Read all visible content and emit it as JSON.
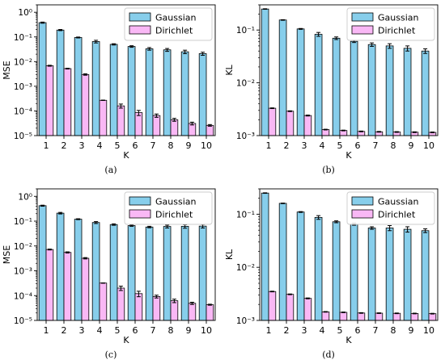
{
  "chart_data": [
    {
      "type": "bar",
      "panel": "(a)",
      "categories": [
        "1",
        "2",
        "3",
        "4",
        "5",
        "6",
        "7",
        "8",
        "9",
        "10"
      ],
      "xlabel": "K",
      "ylabel": "MSE",
      "yscale": "log",
      "ylim": [
        1e-05,
        2
      ],
      "ytick_labels": [
        "10⁻⁵",
        "10⁻⁴",
        "10⁻³",
        "10⁻²",
        "10⁻¹",
        "10⁰"
      ],
      "legend": "top-right",
      "series": [
        {
          "name": "Gaussian",
          "color": "#87ceeb",
          "values": [
            0.38,
            0.19,
            0.095,
            0.065,
            0.05,
            0.041,
            0.033,
            0.03,
            0.025,
            0.021
          ],
          "errors": [
            0.02,
            0.01,
            0.004,
            0.008,
            0.003,
            0.003,
            0.004,
            0.004,
            0.004,
            0.003
          ]
        },
        {
          "name": "Dirichlet",
          "color": "#f9b8f5",
          "values": [
            0.0068,
            0.0052,
            0.003,
            0.00027,
            0.00016,
            8.5e-05,
            6.5e-05,
            4.4e-05,
            3.1e-05,
            2.6e-05
          ],
          "errors": [
            0.0003,
            0.0002,
            0.0002,
            5e-06,
            3e-05,
            2e-05,
            1e-05,
            6e-06,
            4e-06,
            2e-06
          ]
        }
      ]
    },
    {
      "type": "bar",
      "panel": "(b)",
      "categories": [
        "1",
        "2",
        "3",
        "4",
        "5",
        "6",
        "7",
        "8",
        "9",
        "10"
      ],
      "xlabel": "K",
      "ylabel": "KL",
      "yscale": "log",
      "ylim": [
        0.001,
        0.3
      ],
      "ytick_labels": [
        "10⁻³",
        "10⁻²",
        "10⁻¹"
      ],
      "legend": "top-right",
      "series": [
        {
          "name": "Gaussian",
          "color": "#87ceeb",
          "values": [
            0.25,
            0.155,
            0.105,
            0.083,
            0.07,
            0.061,
            0.053,
            0.05,
            0.045,
            0.04
          ],
          "errors": [
            0.003,
            0.002,
            0.002,
            0.007,
            0.004,
            0.003,
            0.004,
            0.005,
            0.005,
            0.004
          ]
        },
        {
          "name": "Dirichlet",
          "color": "#f9b8f5",
          "values": [
            0.0033,
            0.0029,
            0.0024,
            0.0013,
            0.00125,
            0.0012,
            0.00118,
            0.00117,
            0.00116,
            0.00115
          ],
          "errors": [
            5e-05,
            5e-05,
            5e-05,
            2e-05,
            2e-05,
            2e-05,
            2e-05,
            2e-05,
            2e-05,
            2e-05
          ]
        }
      ]
    },
    {
      "type": "bar",
      "panel": "(c)",
      "categories": [
        "1",
        "2",
        "3",
        "4",
        "5",
        "6",
        "7",
        "8",
        "9",
        "10"
      ],
      "xlabel": "K",
      "ylabel": "MSE",
      "yscale": "log",
      "ylim": [
        1e-05,
        2
      ],
      "ytick_labels": [
        "10⁻⁵",
        "10⁻⁴",
        "10⁻³",
        "10⁻²",
        "10⁻¹",
        "10⁰"
      ],
      "legend": "top-right",
      "series": [
        {
          "name": "Gaussian",
          "color": "#87ceeb",
          "values": [
            0.42,
            0.21,
            0.12,
            0.088,
            0.073,
            0.066,
            0.058,
            0.061,
            0.062,
            0.063
          ],
          "errors": [
            0.02,
            0.015,
            0.005,
            0.008,
            0.005,
            0.004,
            0.004,
            0.008,
            0.01,
            0.01
          ]
        },
        {
          "name": "Dirichlet",
          "color": "#f9b8f5",
          "values": [
            0.0072,
            0.0055,
            0.0032,
            0.00032,
            0.0002,
            0.00012,
            9.2e-05,
            6.2e-05,
            4.9e-05,
            4.3e-05
          ],
          "errors": [
            0.0003,
            0.0003,
            0.0002,
            5e-06,
            4e-05,
            3e-05,
            1.2e-05,
            1e-05,
            5e-06,
            2e-06
          ]
        }
      ]
    },
    {
      "type": "bar",
      "panel": "(d)",
      "categories": [
        "1",
        "2",
        "3",
        "4",
        "5",
        "6",
        "7",
        "8",
        "9",
        "10"
      ],
      "xlabel": "K",
      "ylabel": "KL",
      "yscale": "log",
      "ylim": [
        0.001,
        0.3
      ],
      "ytick_labels": [
        "10⁻³",
        "10⁻²",
        "10⁻¹"
      ],
      "legend": "top-right",
      "series": [
        {
          "name": "Gaussian",
          "color": "#87ceeb",
          "values": [
            0.25,
            0.16,
            0.11,
            0.087,
            0.072,
            0.065,
            0.055,
            0.055,
            0.052,
            0.049
          ],
          "errors": [
            0.003,
            0.002,
            0.002,
            0.007,
            0.003,
            0.003,
            0.003,
            0.006,
            0.006,
            0.004
          ]
        },
        {
          "name": "Dirichlet",
          "color": "#f9b8f5",
          "values": [
            0.0035,
            0.0031,
            0.0026,
            0.00145,
            0.00142,
            0.00138,
            0.00137,
            0.00136,
            0.00135,
            0.00134
          ],
          "errors": [
            5e-05,
            5e-05,
            5e-05,
            2e-05,
            2e-05,
            2e-05,
            2e-05,
            2e-05,
            2e-05,
            2e-05
          ]
        }
      ]
    }
  ]
}
